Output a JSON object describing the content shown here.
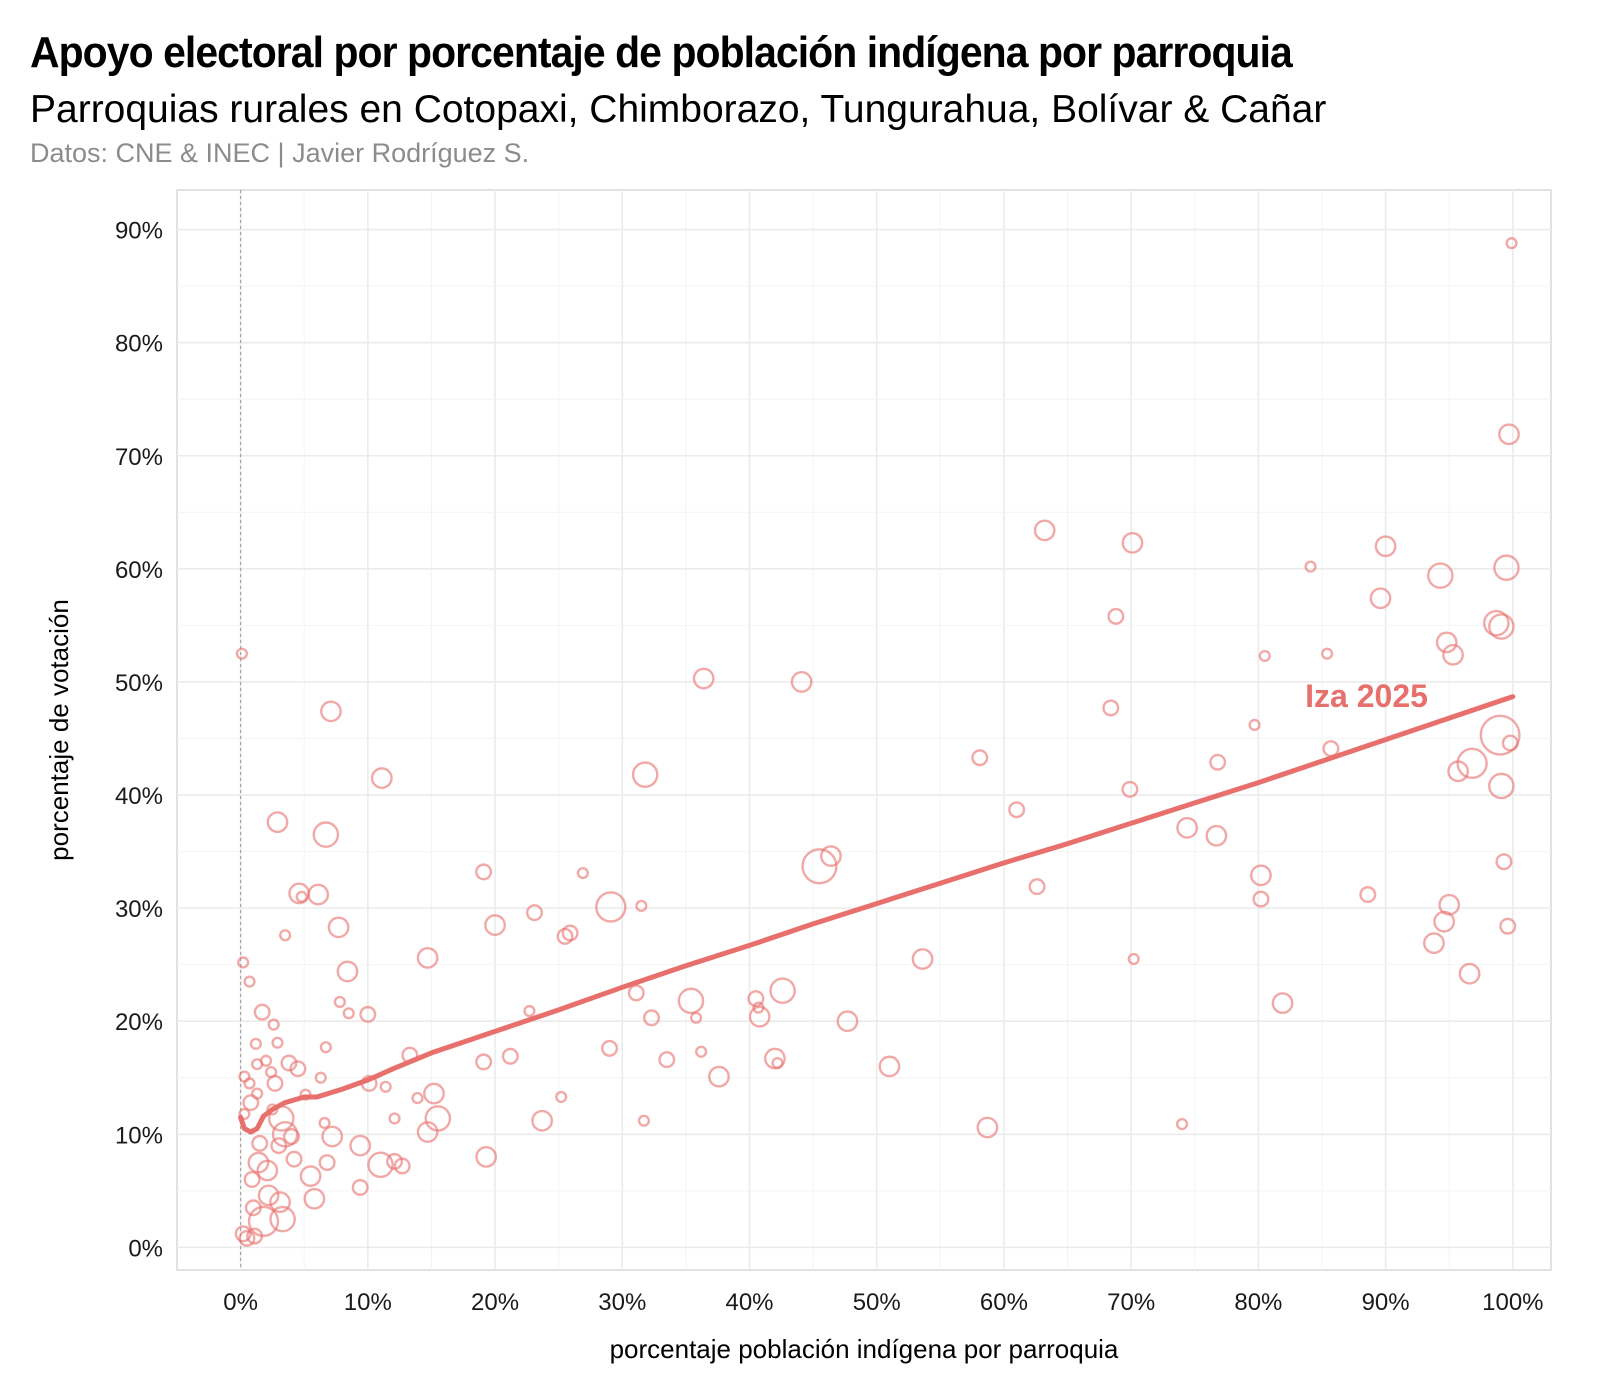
{
  "title": "Apoyo electoral por porcentaje de población indígena por parroquia",
  "subtitle": "Parroquias rurales en Cotopaxi, Chimborazo, Tungurahua, Bolívar & Cañar",
  "caption": "Datos: CNE & INEC | Javier Rodríguez S.",
  "chart_data": {
    "type": "scatter",
    "xlabel": "porcentaje población indígena por parroquia",
    "ylabel": "porcentaje de votación",
    "xlim": [
      -5,
      103
    ],
    "ylim": [
      -2,
      93.5
    ],
    "x_ticks": [
      0,
      10,
      20,
      30,
      40,
      50,
      60,
      70,
      80,
      90,
      100
    ],
    "x_tick_labels": [
      "0%",
      "10%",
      "20%",
      "30%",
      "40%",
      "50%",
      "60%",
      "70%",
      "80%",
      "90%",
      "100%"
    ],
    "y_ticks": [
      0,
      10,
      20,
      30,
      40,
      50,
      60,
      70,
      80,
      90
    ],
    "y_tick_labels": [
      "0%",
      "10%",
      "20%",
      "30%",
      "40%",
      "50%",
      "60%",
      "70%",
      "80%",
      "90%"
    ],
    "grid": true,
    "reference_line_x": 0,
    "color": "#e8706c",
    "series": [
      {
        "name": "Iza 2025",
        "type": "trend",
        "label": "Iza 2025",
        "x": [
          0,
          0.3,
          0.8,
          1.3,
          1.8,
          2.5,
          3.5,
          5,
          6,
          8,
          10,
          12,
          15,
          20,
          25,
          30,
          35,
          40,
          45,
          50,
          55,
          60,
          65,
          70,
          75,
          80,
          85,
          90,
          95,
          100
        ],
        "y": [
          11.5,
          10.5,
          10.2,
          10.5,
          11.6,
          12.2,
          12.8,
          13.3,
          13.3,
          14.0,
          14.8,
          15.8,
          17.2,
          19.1,
          21.0,
          23.0,
          24.9,
          26.7,
          28.6,
          30.4,
          32.2,
          34.0,
          35.7,
          37.5,
          39.3,
          41.1,
          43.0,
          44.9,
          46.8,
          48.7
        ]
      },
      {
        "name": "parroquias",
        "type": "points",
        "size_meaning": "relative point size",
        "points": [
          [
            0.1,
            52.5,
            1
          ],
          [
            0.2,
            25.2,
            1
          ],
          [
            0.3,
            15.1,
            1
          ],
          [
            0.3,
            11.8,
            1
          ],
          [
            0.2,
            1.2,
            2
          ],
          [
            0.5,
            0.8,
            2
          ],
          [
            0.7,
            23.5,
            1
          ],
          [
            0.7,
            14.5,
            1
          ],
          [
            0.8,
            12.8,
            2
          ],
          [
            0.9,
            6.0,
            2
          ],
          [
            1.0,
            3.5,
            2
          ],
          [
            1.1,
            1.0,
            2
          ],
          [
            1.2,
            18.0,
            1
          ],
          [
            1.3,
            16.2,
            1
          ],
          [
            1.3,
            13.6,
            1
          ],
          [
            1.4,
            7.5,
            3
          ],
          [
            1.5,
            9.2,
            2
          ],
          [
            1.7,
            20.8,
            2
          ],
          [
            1.8,
            2.3,
            5
          ],
          [
            2.0,
            16.5,
            1
          ],
          [
            2.1,
            6.8,
            3
          ],
          [
            2.2,
            4.6,
            3
          ],
          [
            2.4,
            15.5,
            1
          ],
          [
            2.5,
            12.2,
            1
          ],
          [
            2.6,
            19.7,
            1
          ],
          [
            2.7,
            14.5,
            2
          ],
          [
            2.9,
            18.1,
            1
          ],
          [
            2.9,
            37.6,
            3
          ],
          [
            3.0,
            9.0,
            2
          ],
          [
            3.1,
            4.0,
            3
          ],
          [
            3.2,
            11.4,
            4
          ],
          [
            3.3,
            2.5,
            4
          ],
          [
            3.5,
            27.6,
            1
          ],
          [
            3.5,
            10.0,
            4
          ],
          [
            3.8,
            16.3,
            2
          ],
          [
            4.0,
            9.8,
            2
          ],
          [
            4.2,
            7.8,
            2
          ],
          [
            4.5,
            15.8,
            2
          ],
          [
            4.8,
            31.0,
            1
          ],
          [
            4.6,
            31.3,
            3
          ],
          [
            5.1,
            13.5,
            1
          ],
          [
            5.5,
            6.3,
            3
          ],
          [
            5.8,
            4.3,
            3
          ],
          [
            6.1,
            31.2,
            3
          ],
          [
            6.3,
            15.0,
            1
          ],
          [
            6.6,
            11.0,
            1
          ],
          [
            6.7,
            17.7,
            1
          ],
          [
            6.7,
            36.5,
            4
          ],
          [
            6.8,
            7.5,
            2
          ],
          [
            7.1,
            47.4,
            3
          ],
          [
            7.2,
            9.8,
            3
          ],
          [
            7.8,
            21.7,
            1
          ],
          [
            7.7,
            28.3,
            3
          ],
          [
            8.4,
            24.4,
            3
          ],
          [
            8.5,
            20.7,
            1
          ],
          [
            9.4,
            9.0,
            3
          ],
          [
            9.4,
            5.3,
            2
          ],
          [
            10.0,
            20.6,
            2
          ],
          [
            10.1,
            14.5,
            2
          ],
          [
            11.1,
            41.5,
            3
          ],
          [
            11.0,
            7.3,
            4
          ],
          [
            11.4,
            14.2,
            1
          ],
          [
            12.1,
            11.4,
            1
          ],
          [
            12.1,
            7.6,
            2
          ],
          [
            12.7,
            7.2,
            2
          ],
          [
            13.3,
            17.0,
            2
          ],
          [
            13.9,
            13.2,
            1
          ],
          [
            14.7,
            25.6,
            3
          ],
          [
            14.7,
            10.2,
            3
          ],
          [
            15.2,
            13.6,
            3
          ],
          [
            15.5,
            11.4,
            4
          ],
          [
            19.1,
            33.2,
            2
          ],
          [
            19.1,
            16.4,
            2
          ],
          [
            19.3,
            8.0,
            3
          ],
          [
            20.0,
            28.5,
            3
          ],
          [
            21.2,
            16.9,
            2
          ],
          [
            22.7,
            20.9,
            1
          ],
          [
            23.1,
            29.6,
            2
          ],
          [
            23.7,
            11.2,
            3
          ],
          [
            25.2,
            13.3,
            1
          ],
          [
            25.5,
            27.5,
            2
          ],
          [
            25.9,
            27.8,
            2
          ],
          [
            26.9,
            33.1,
            1
          ],
          [
            29.0,
            17.6,
            2
          ],
          [
            29.1,
            30.1,
            5
          ],
          [
            31.1,
            22.5,
            2
          ],
          [
            31.5,
            30.2,
            1
          ],
          [
            31.7,
            11.2,
            1
          ],
          [
            31.8,
            41.8,
            4
          ],
          [
            32.3,
            20.3,
            2
          ],
          [
            33.5,
            16.6,
            2
          ],
          [
            35.4,
            21.8,
            4
          ],
          [
            35.8,
            20.3,
            1
          ],
          [
            36.2,
            17.3,
            1
          ],
          [
            36.4,
            50.3,
            3
          ],
          [
            37.6,
            15.1,
            3
          ],
          [
            40.5,
            22.0,
            2
          ],
          [
            40.7,
            21.2,
            1
          ],
          [
            40.8,
            20.4,
            3
          ],
          [
            42.0,
            16.7,
            3
          ],
          [
            42.2,
            16.3,
            1
          ],
          [
            42.6,
            22.7,
            4
          ],
          [
            44.1,
            50.0,
            3
          ],
          [
            45.5,
            33.7,
            6
          ],
          [
            46.4,
            34.6,
            3
          ],
          [
            47.7,
            20.0,
            3
          ],
          [
            51.0,
            16.0,
            3
          ],
          [
            53.6,
            25.5,
            3
          ],
          [
            58.1,
            43.3,
            2
          ],
          [
            58.7,
            10.6,
            3
          ],
          [
            61.0,
            38.7,
            2
          ],
          [
            62.6,
            31.9,
            2
          ],
          [
            63.2,
            63.4,
            3
          ],
          [
            68.4,
            47.7,
            2
          ],
          [
            68.8,
            55.8,
            2
          ],
          [
            69.9,
            40.5,
            2
          ],
          [
            70.1,
            62.3,
            3
          ],
          [
            70.2,
            25.5,
            1
          ],
          [
            74.0,
            10.9,
            1
          ],
          [
            74.4,
            37.1,
            3
          ],
          [
            76.7,
            36.4,
            3
          ],
          [
            76.8,
            42.9,
            2
          ],
          [
            79.7,
            46.2,
            1
          ],
          [
            80.2,
            30.8,
            2
          ],
          [
            80.2,
            32.9,
            3
          ],
          [
            80.5,
            52.3,
            1
          ],
          [
            81.9,
            21.6,
            3
          ],
          [
            84.1,
            60.2,
            1
          ],
          [
            85.4,
            52.5,
            1
          ],
          [
            85.7,
            44.1,
            2
          ],
          [
            88.6,
            31.2,
            2
          ],
          [
            89.6,
            57.4,
            3
          ],
          [
            90.0,
            62.0,
            3
          ],
          [
            93.8,
            26.9,
            3
          ],
          [
            94.3,
            59.4,
            4
          ],
          [
            94.6,
            28.8,
            3
          ],
          [
            94.8,
            53.5,
            3
          ],
          [
            95.0,
            30.3,
            3
          ],
          [
            95.3,
            52.4,
            3
          ],
          [
            95.7,
            42.1,
            3
          ],
          [
            96.6,
            24.2,
            3
          ],
          [
            96.8,
            42.8,
            5
          ],
          [
            98.7,
            55.2,
            4
          ],
          [
            99.0,
            45.3,
            7
          ],
          [
            99.1,
            40.8,
            4
          ],
          [
            99.1,
            54.9,
            4
          ],
          [
            99.3,
            34.1,
            2
          ],
          [
            99.5,
            60.1,
            4
          ],
          [
            99.6,
            28.4,
            2
          ],
          [
            99.7,
            71.9,
            3
          ],
          [
            99.8,
            44.6,
            2
          ],
          [
            99.9,
            88.8,
            1
          ]
        ]
      }
    ]
  }
}
